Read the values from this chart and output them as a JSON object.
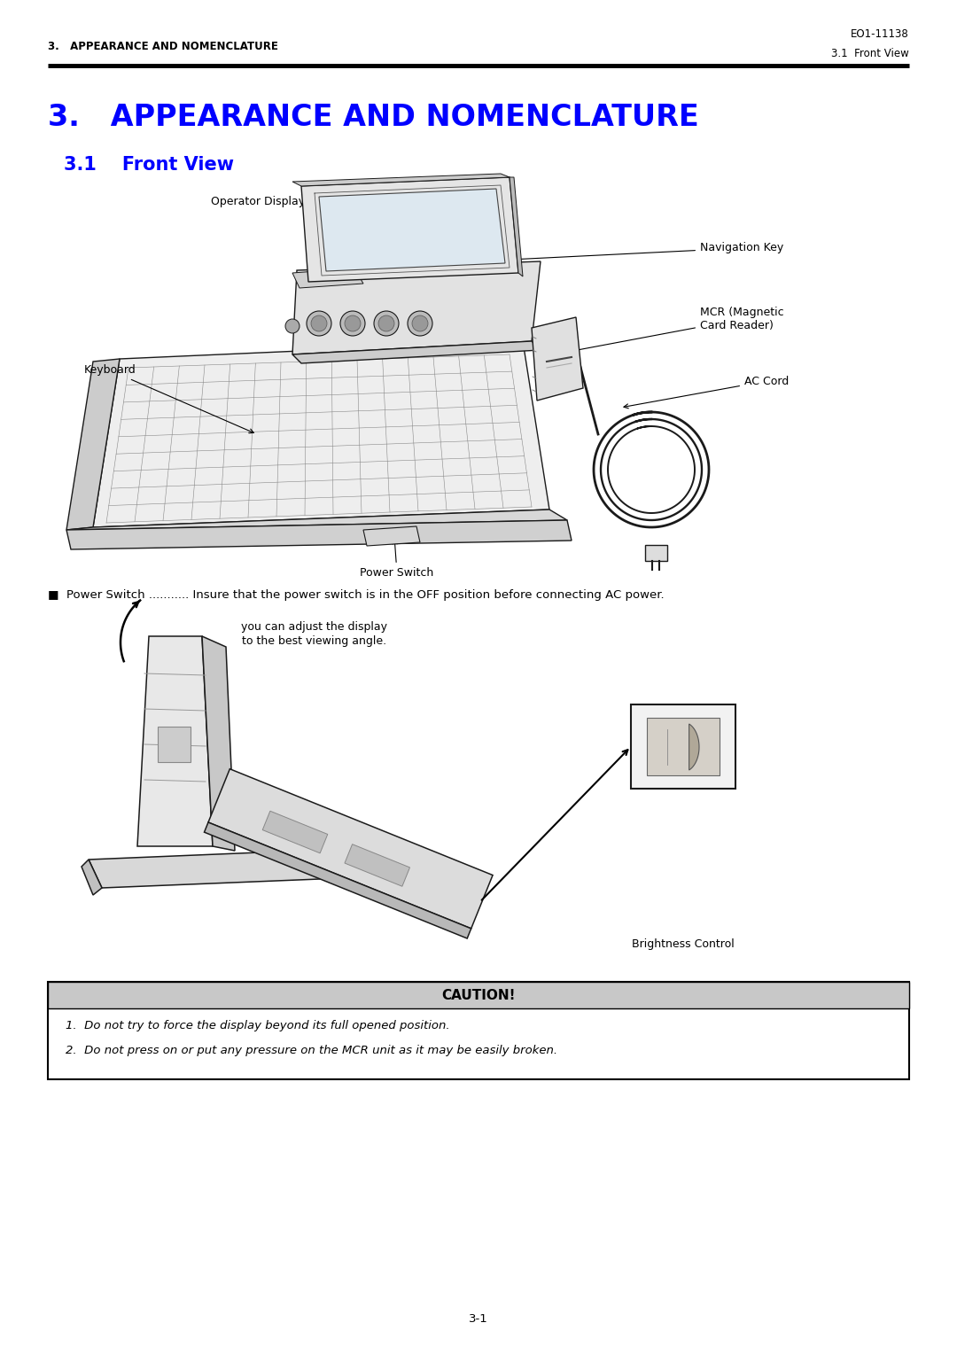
{
  "page_bg": "#ffffff",
  "header_text_left": "3.   APPEARANCE AND NOMENCLATURE",
  "header_text_right": "EO1-11138",
  "header_subright": "3.1  Front View",
  "title_main": "3.   APPEARANCE AND NOMENCLATURE",
  "title_sub": "3.1    Front View",
  "title_main_color": "#0000ff",
  "title_sub_color": "#0000ff",
  "header_line_color": "#000000",
  "body_text": "■  Power Switch ........... Insure that the power switch is in the OFF position before connecting AC power.",
  "caution_title": "CAUTION!",
  "caution_bg": "#c8c8c8",
  "caution_box_border": "#000000",
  "caution_item1": "1.  Do not try to force the display beyond its full opened position.",
  "caution_item2": "2.  Do not press on or put any pressure on the MCR unit as it may be easily broken.",
  "label_disp": "Operator Display",
  "label_nav": "Navigation Key",
  "label_kb": "Keyboard",
  "label_mcr": "MCR (Magnetic\nCard Reader)",
  "label_ac": "AC Cord",
  "label_ps": "Power Switch",
  "label_adj1": "you can adjust the display",
  "label_adj2": "to the best viewing angle.",
  "label_bright": "Brightness Control",
  "page_number": "3-1",
  "font_color": "#000000",
  "body_font": 9.5,
  "header_font": 8.5,
  "label_font": 9,
  "title_main_font": 24,
  "title_sub_font": 15
}
